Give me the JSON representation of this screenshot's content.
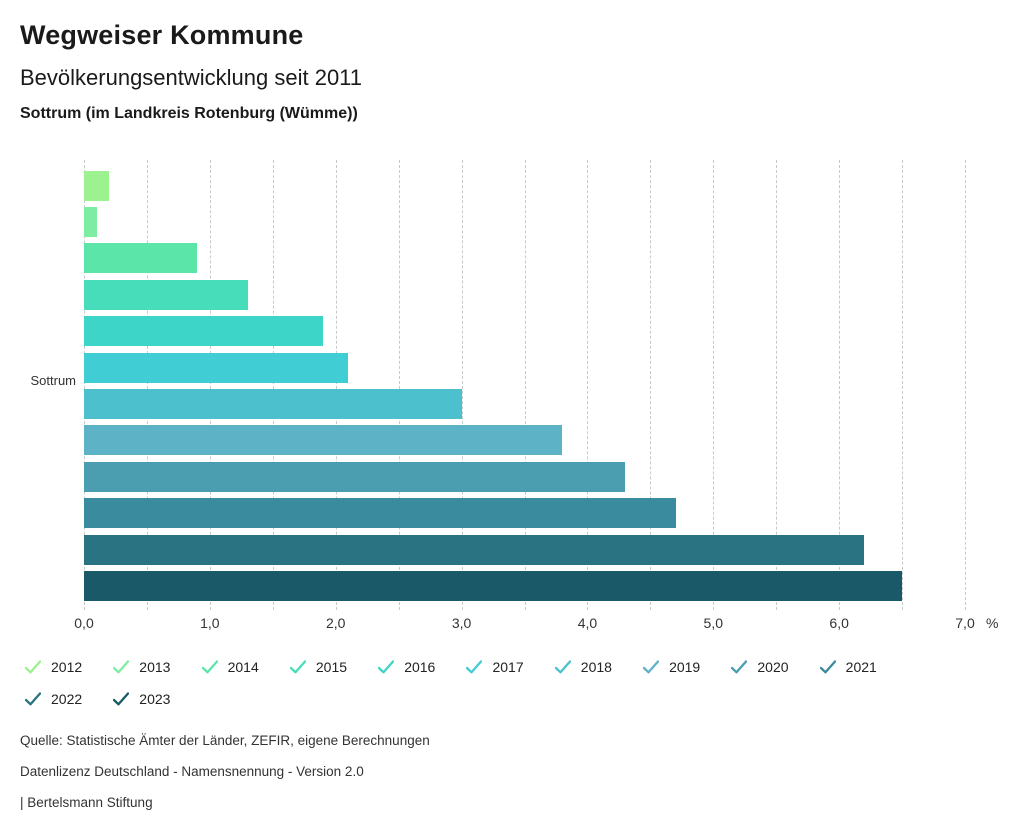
{
  "header": {
    "title": "Wegweiser Kommune",
    "subtitle": "Bevölkerungsentwicklung seit 2011",
    "region": "Sottrum (im Landkreis Rotenburg (Wümme))"
  },
  "chart_data": {
    "type": "bar",
    "orientation": "horizontal",
    "title": "Bevölkerungsentwicklung seit 2011",
    "subtitle": "Sottrum (im Landkreis Rotenburg (Wümme))",
    "category_label": "Sottrum",
    "unit": "%",
    "years": [
      "2012",
      "2013",
      "2014",
      "2015",
      "2016",
      "2017",
      "2018",
      "2019",
      "2020",
      "2021",
      "2022",
      "2023"
    ],
    "values": [
      0.2,
      0.1,
      0.9,
      1.3,
      1.9,
      2.1,
      3.0,
      3.8,
      4.3,
      4.7,
      6.2,
      6.5
    ],
    "colors": [
      "#9BF28E",
      "#7EEDA2",
      "#5BE5A9",
      "#48DDBA",
      "#3DD5C8",
      "#40CDD3",
      "#4DC0CE",
      "#5DB2C6",
      "#4A9EB0",
      "#3A8B9D",
      "#2A7383",
      "#1A5968"
    ],
    "xlim": [
      0,
      7
    ],
    "x_ticks": [
      "0,0",
      "1,0",
      "2,0",
      "3,0",
      "4,0",
      "5,0",
      "6,0",
      "7,0"
    ],
    "x_tick_values": [
      0,
      1,
      2,
      3,
      4,
      5,
      6,
      7
    ],
    "gridline_step": 0.5,
    "grid": true,
    "gridline_color": "#c9c9c9",
    "legend_position": "bottom",
    "legend_icon": "checkmark-icon"
  },
  "footer": {
    "source": "Quelle: Statistische Ämter der Länder, ZEFIR, eigene Berechnungen",
    "license": "Datenlizenz Deutschland - Namensnennung - Version 2.0",
    "attribution": "| Bertelsmann Stiftung"
  }
}
